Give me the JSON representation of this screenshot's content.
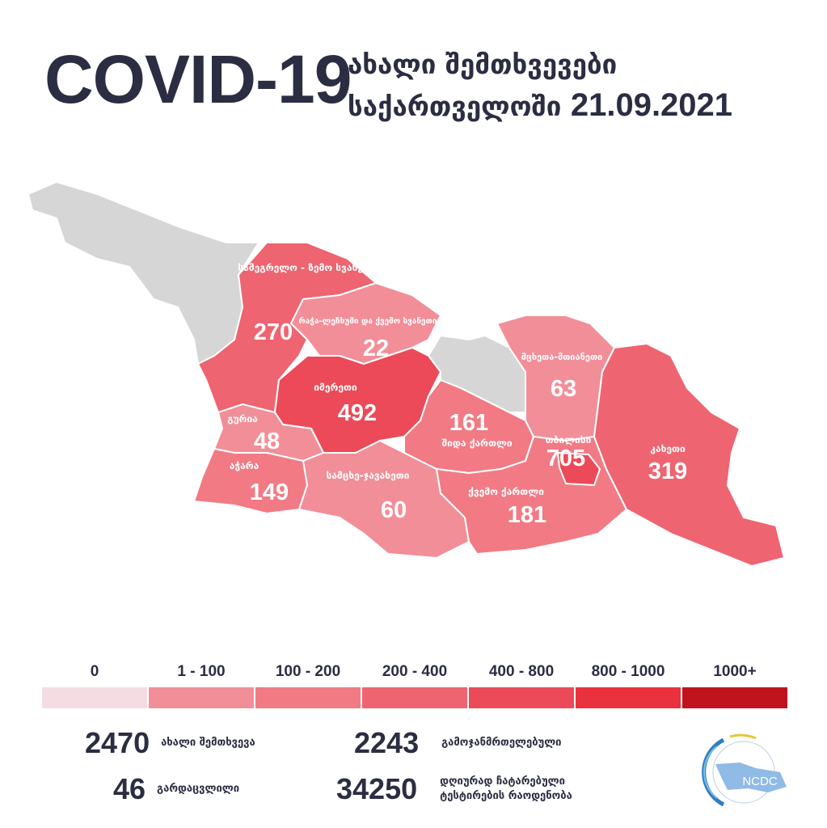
{
  "header": {
    "title": "COVID-19",
    "subtitle_line1": "ახალი შემთხვევები",
    "subtitle_line2": "საქართველოში",
    "date": "21.09.2021"
  },
  "map": {
    "no_data_color": "#d6d6d6",
    "regions": [
      {
        "name": "სამეგრელო - ზემო სვანეთი",
        "value": "270",
        "color": "#ee6470"
      },
      {
        "name": "რაჭა-ლეჩხუმი და ქვემო სვანეთი",
        "value": "22",
        "color": "#f28e98"
      },
      {
        "name": "იმერეთი",
        "value": "492",
        "color": "#ec4a58"
      },
      {
        "name": "გურია",
        "value": "48",
        "color": "#f28e98"
      },
      {
        "name": "აჭარა",
        "value": "149",
        "color": "#f27a84"
      },
      {
        "name": "სამცხე-ჯავახეთი",
        "value": "60",
        "color": "#f28e98"
      },
      {
        "name": "შიდა ქართლი",
        "value": "161",
        "color": "#f27a84"
      },
      {
        "name": "მცხეთა-მთიანეთი",
        "value": "63",
        "color": "#f28e98"
      },
      {
        "name": "თბილისი",
        "value": "705",
        "color": "#ec4a58"
      },
      {
        "name": "ქვემო ქართლი",
        "value": "181",
        "color": "#f27a84"
      },
      {
        "name": "კახეთი",
        "value": "319",
        "color": "#ee6470"
      }
    ]
  },
  "legend": [
    {
      "label": "0",
      "color": "#f4dce2"
    },
    {
      "label": "1 - 100",
      "color": "#f28e98"
    },
    {
      "label": "100 - 200",
      "color": "#f27a84"
    },
    {
      "label": "200 - 400",
      "color": "#ee6470"
    },
    {
      "label": "400 - 800",
      "color": "#ec4a58"
    },
    {
      "label": "800 - 1000",
      "color": "#ea323e"
    },
    {
      "label": "1000+",
      "color": "#c0131d"
    }
  ],
  "stats": {
    "new_cases": {
      "value": "2470",
      "label": "ახალი შემთხვევა"
    },
    "recovered": {
      "value": "2243",
      "label": "გამოჯანმრთელებული"
    },
    "deaths": {
      "value": "46",
      "label": "გარდაცვლილი"
    },
    "tests": {
      "value": "34250",
      "label_line1": "დღიურად ჩატარებული",
      "label_line2": "ტესტირების რაოდენობა"
    }
  },
  "logo": {
    "text": "NCDC"
  }
}
